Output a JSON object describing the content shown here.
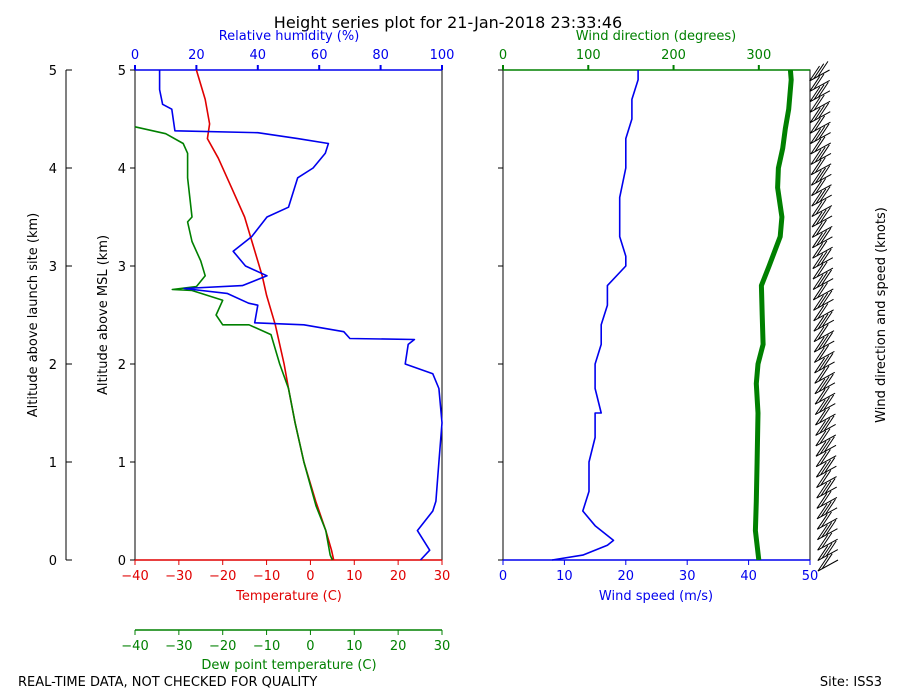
{
  "title": "Height series plot for 21-Jan-2018 23:33:46",
  "footer": {
    "left": "REAL-TIME DATA, NOT CHECKED FOR QUALITY",
    "right": "Site: ISS3"
  },
  "colors": {
    "temperature": "#e00000",
    "dewpoint": "#008000",
    "rh": "#0000ee",
    "wind_speed": "#0000ee",
    "wind_dir": "#008000",
    "axis": "#000000"
  },
  "chart_data": [
    {
      "type": "line",
      "panel": "thermo",
      "ylabel_outer": "Altitude above launch site (km)",
      "ylabel_inner": "Altitude above MSL (km)",
      "ylim": [
        0,
        5
      ],
      "yticks": [
        "0",
        "1",
        "2",
        "3",
        "4",
        "5"
      ],
      "x_axes": {
        "temperature": {
          "label": "Temperature (C)",
          "lim": [
            -40,
            30
          ],
          "ticks": [
            "-40",
            "-30",
            "-20",
            "-10",
            "0",
            "10",
            "20",
            "30"
          ]
        },
        "dewpoint": {
          "label": "Dew point temperature (C)",
          "lim": [
            -40,
            30
          ],
          "ticks": [
            "-40",
            "-30",
            "-20",
            "-10",
            "0",
            "10",
            "20",
            "30"
          ]
        },
        "rh": {
          "label": "Relative humidity (%)",
          "lim": [
            0,
            100
          ],
          "ticks": [
            "0",
            "20",
            "40",
            "60",
            "80",
            "100"
          ]
        }
      },
      "series": [
        {
          "name": "Temperature",
          "axis": "temperature",
          "points": [
            [
              5.3,
              0
            ],
            [
              4.8,
              0.1
            ],
            [
              3.5,
              0.3
            ],
            [
              1.2,
              0.6
            ],
            [
              -1.5,
              1.0
            ],
            [
              -3.5,
              1.4
            ],
            [
              -5.0,
              1.75
            ],
            [
              -6.0,
              2.0
            ],
            [
              -8.0,
              2.4
            ],
            [
              -10.0,
              2.7
            ],
            [
              -11.0,
              2.9
            ],
            [
              -13.0,
              3.2
            ],
            [
              -15.0,
              3.5
            ],
            [
              -18.0,
              3.8
            ],
            [
              -21.0,
              4.1
            ],
            [
              -23.5,
              4.3
            ],
            [
              -23.0,
              4.45
            ],
            [
              -24.0,
              4.7
            ],
            [
              -26.0,
              5.0
            ]
          ]
        },
        {
          "name": "Dew point",
          "axis": "dewpoint",
          "points": [
            [
              5.0,
              0
            ],
            [
              4.5,
              0.05
            ],
            [
              3.5,
              0.3
            ],
            [
              1.3,
              0.55
            ],
            [
              -1.5,
              1.0
            ],
            [
              -3.5,
              1.4
            ],
            [
              -5.0,
              1.75
            ],
            [
              -7.0,
              2.0
            ],
            [
              -9.0,
              2.3
            ],
            [
              -14.0,
              2.4
            ],
            [
              -20.0,
              2.4
            ],
            [
              -21.5,
              2.5
            ],
            [
              -20.0,
              2.65
            ],
            [
              -27.0,
              2.75
            ],
            [
              -31.5,
              2.76
            ],
            [
              -26.0,
              2.79
            ],
            [
              -24.0,
              2.9
            ],
            [
              -25.0,
              3.05
            ],
            [
              -27.0,
              3.25
            ],
            [
              -28.0,
              3.45
            ],
            [
              -27.0,
              3.5
            ],
            [
              -27.5,
              3.7
            ],
            [
              -28.0,
              3.9
            ],
            [
              -28.0,
              4.15
            ],
            [
              -29.0,
              4.25
            ],
            [
              -33.0,
              4.35
            ],
            [
              -40.0,
              4.42
            ]
          ]
        },
        {
          "name": "Relative humidity",
          "axis": "rh",
          "points": [
            [
              93,
              0
            ],
            [
              96,
              0.1
            ],
            [
              92,
              0.3
            ],
            [
              97,
              0.5
            ],
            [
              98,
              0.6
            ],
            [
              99,
              1.0
            ],
            [
              100,
              1.4
            ],
            [
              99,
              1.75
            ],
            [
              97,
              1.9
            ],
            [
              88,
              2.0
            ],
            [
              89,
              2.2
            ],
            [
              91,
              2.25
            ],
            [
              70,
              2.26
            ],
            [
              68,
              2.33
            ],
            [
              55,
              2.4
            ],
            [
              39,
              2.42
            ],
            [
              40,
              2.6
            ],
            [
              37,
              2.62
            ],
            [
              30,
              2.72
            ],
            [
              16,
              2.77
            ],
            [
              35,
              2.8
            ],
            [
              43,
              2.9
            ],
            [
              36,
              3.0
            ],
            [
              32,
              3.15
            ],
            [
              38,
              3.3
            ],
            [
              43,
              3.5
            ],
            [
              50,
              3.6
            ],
            [
              53,
              3.9
            ],
            [
              58,
              4.0
            ],
            [
              62,
              4.15
            ],
            [
              63,
              4.25
            ],
            [
              53,
              4.3
            ],
            [
              40,
              4.36
            ],
            [
              13,
              4.38
            ],
            [
              12,
              4.6
            ],
            [
              9,
              4.65
            ],
            [
              8,
              4.8
            ],
            [
              8,
              5.0
            ]
          ]
        }
      ]
    },
    {
      "type": "line",
      "panel": "wind",
      "ylim": [
        0,
        5
      ],
      "x_axes": {
        "wind_speed": {
          "label": "Wind speed (m/s)",
          "lim": [
            0,
            50
          ],
          "ticks": [
            "0",
            "10",
            "20",
            "30",
            "40",
            "50"
          ]
        },
        "wind_dir": {
          "label": "Wind direction (degrees)",
          "lim": [
            0,
            360
          ],
          "ticks": [
            "0",
            "100",
            "200",
            "300"
          ]
        }
      },
      "series": [
        {
          "name": "Wind speed",
          "axis": "wind_speed",
          "points": [
            [
              8,
              0
            ],
            [
              13,
              0.05
            ],
            [
              17,
              0.15
            ],
            [
              18,
              0.2
            ],
            [
              15,
              0.35
            ],
            [
              13,
              0.5
            ],
            [
              14,
              0.7
            ],
            [
              14,
              1.0
            ],
            [
              15,
              1.25
            ],
            [
              15,
              1.5
            ],
            [
              16,
              1.5
            ],
            [
              15,
              1.75
            ],
            [
              15,
              2.0
            ],
            [
              16,
              2.2
            ],
            [
              16,
              2.4
            ],
            [
              17,
              2.6
            ],
            [
              17,
              2.8
            ],
            [
              20,
              3.0
            ],
            [
              20,
              3.1
            ],
            [
              19,
              3.3
            ],
            [
              19,
              3.5
            ],
            [
              19,
              3.7
            ],
            [
              20,
              4.0
            ],
            [
              20,
              4.15
            ],
            [
              20,
              4.3
            ],
            [
              21,
              4.5
            ],
            [
              21,
              4.7
            ],
            [
              22,
              4.9
            ],
            [
              22,
              5.0
            ]
          ]
        },
        {
          "name": "Wind direction",
          "axis": "wind_dir",
          "points": [
            [
              300,
              0
            ],
            [
              296,
              0.3
            ],
            [
              297,
              0.6
            ],
            [
              298,
              1.0
            ],
            [
              299,
              1.5
            ],
            [
              297,
              1.8
            ],
            [
              299,
              2.0
            ],
            [
              305,
              2.2
            ],
            [
              304,
              2.5
            ],
            [
              303,
              2.8
            ],
            [
              312,
              3.0
            ],
            [
              325,
              3.3
            ],
            [
              327,
              3.5
            ],
            [
              322,
              3.8
            ],
            [
              323,
              4.0
            ],
            [
              328,
              4.2
            ],
            [
              331,
              4.4
            ],
            [
              335,
              4.6
            ],
            [
              338,
              4.9
            ],
            [
              337,
              5.0
            ]
          ]
        }
      ]
    },
    {
      "type": "barbs",
      "panel": "barbs",
      "label": "Wind direction and speed (knots)",
      "count": 48
    }
  ]
}
